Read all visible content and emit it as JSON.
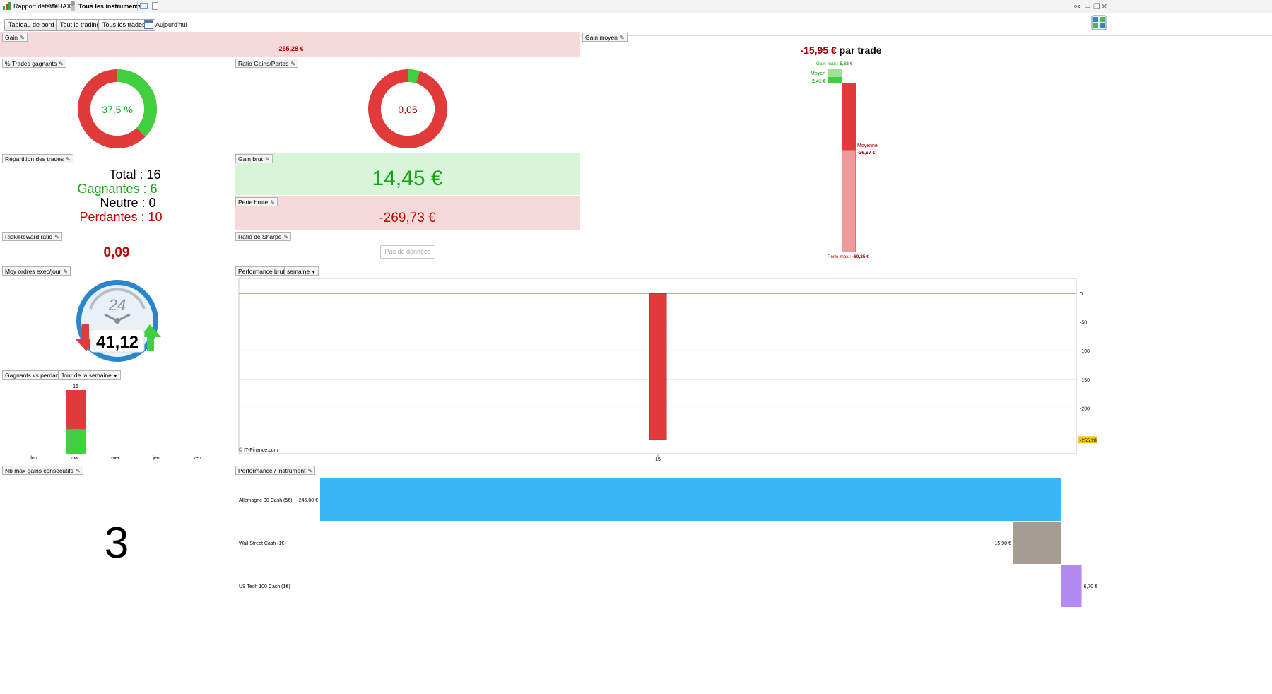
{
  "titlebar": {
    "report_label": "Rapport détaillé",
    "account": "VYHAX",
    "instruments": "Tous les instruments"
  },
  "toolbar": {
    "dashboard": "Tableau de bord",
    "trading": "Tout le trading",
    "trades": "Tous les trades",
    "today": "Aujourd'hui"
  },
  "gain": {
    "label": "Gain",
    "value": "-255,28 €"
  },
  "avg_gain": {
    "label": "Gain moyen",
    "value": "-15,95 €",
    "suffix": "par trade",
    "max_gain_label": "Gain max :",
    "max_gain": "5,68 €",
    "avg_win_label": "Moyen",
    "avg_win": "2,41 €",
    "avg_loss_label": "Moyenne",
    "avg_loss": "-26,97 €",
    "max_loss_label": "Perte max :",
    "max_loss": "-69,25 €"
  },
  "win_pct": {
    "label": "% Trades gagnants",
    "value": "37,5 %",
    "fraction": 0.375
  },
  "ratio": {
    "label": "Ratio Gains/Pertes",
    "value": "0,05",
    "fraction": 0.05
  },
  "distribution": {
    "label": "Répartition des trades",
    "total_label": "Total :",
    "total": "16",
    "win_label": "Gagnantes :",
    "win": "6",
    "neutral_label": "Neutre :",
    "neutral": "0",
    "loss_label": "Perdantes :",
    "loss": "10"
  },
  "gross_gain": {
    "label": "Gain brut",
    "value": "14,45 €"
  },
  "gross_loss": {
    "label": "Perte brute",
    "value": "-269,73 €"
  },
  "risk_reward": {
    "label": "Risk/Reward ratio",
    "value": "0,09"
  },
  "sharpe": {
    "label": "Ratio de Sharpe",
    "value": "Pas de données"
  },
  "avg_orders": {
    "label": "Moy ordres exec/jour",
    "value": "41,12",
    "clock": "24"
  },
  "gross_perf": {
    "label": "Performance brute",
    "period": "semaine",
    "copyright": "© IT-Finance.com",
    "last_value": "-255,28"
  },
  "winners_losers": {
    "label": "Gagnants vs perdants",
    "mode": "Jour de la semaine",
    "days": [
      "lun.",
      "mar.",
      "mer.",
      "jeu.",
      "ven."
    ],
    "top_label": "16"
  },
  "max_consec": {
    "label": "Nb max gains consécutifs",
    "value": "3"
  },
  "perf_instrument": {
    "label": "Performance / instrument"
  },
  "chart_data": [
    {
      "type": "bar",
      "title": "Performance brute",
      "categories": [
        "15"
      ],
      "values": [
        -255.28
      ],
      "ylim": [
        -255.28,
        0
      ],
      "yticks": [
        0,
        -50,
        -100,
        -150,
        -200
      ],
      "grid": true
    },
    {
      "type": "bar",
      "title": "Performance / instrument",
      "orientation": "horizontal",
      "categories": [
        "Allemagne 30 Cash (5€)",
        "Wall Street Cash (1€)",
        "US Tech 100 Cash (1€)"
      ],
      "values": [
        -246.0,
        -15.98,
        6.7
      ],
      "value_labels": [
        "-246,00 €",
        "-15,98 €",
        "6,70 €"
      ],
      "colors": [
        "#38b6f6",
        "#a59c93",
        "#b48bf0"
      ]
    },
    {
      "type": "bar",
      "title": "Gagnants vs perdants",
      "stacked": true,
      "categories": [
        "lun.",
        "mar.",
        "mer.",
        "jeu.",
        "ven."
      ],
      "series": [
        {
          "name": "Gagnants",
          "values": [
            0,
            6,
            0,
            0,
            0
          ],
          "color": "#3fcf3f"
        },
        {
          "name": "Perdants",
          "values": [
            0,
            10,
            0,
            0,
            0
          ],
          "color": "#e03a3a"
        }
      ]
    }
  ]
}
